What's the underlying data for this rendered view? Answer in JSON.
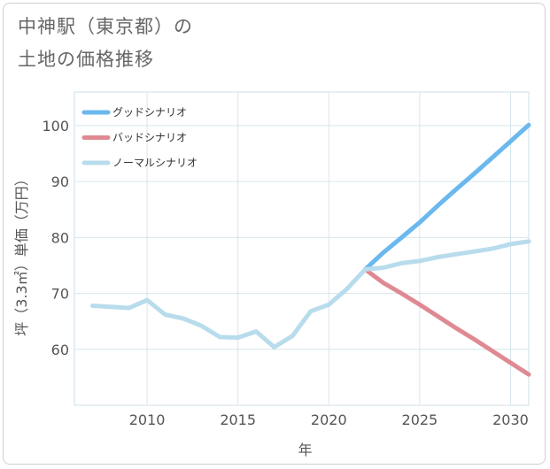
{
  "chart_data": {
    "type": "line",
    "title": [
      "中神駅（東京都）の",
      "土地の価格推移"
    ],
    "xlabel": "年",
    "ylabel": "坪（3.3㎡）単価（万円）",
    "xlim": [
      2006,
      2031
    ],
    "ylim": [
      50,
      106
    ],
    "x_ticks": [
      2010,
      2015,
      2020,
      2025,
      2030
    ],
    "y_ticks": [
      60,
      70,
      80,
      90,
      100
    ],
    "grid": true,
    "legend_position": "top-left",
    "series": [
      {
        "name": "グッドシナリオ",
        "color": "#6bb8ee",
        "x": [
          2022,
          2023,
          2024,
          2025,
          2026,
          2027,
          2028,
          2029,
          2030,
          2031
        ],
        "y": [
          74.3,
          77.3,
          80.0,
          82.7,
          85.7,
          88.6,
          91.4,
          94.3,
          97.2,
          100.1
        ]
      },
      {
        "name": "バッドシナリオ",
        "color": "#df8a93",
        "x": [
          2022,
          2023,
          2024,
          2025,
          2026,
          2027,
          2028,
          2029,
          2030,
          2031
        ],
        "y": [
          74.3,
          71.9,
          70.0,
          68.0,
          65.9,
          63.8,
          61.8,
          59.7,
          57.6,
          55.5
        ]
      },
      {
        "name": "ノーマルシナリオ",
        "color": "#b8dcec",
        "x": [
          2007,
          2008,
          2009,
          2010,
          2011,
          2012,
          2013,
          2014,
          2015,
          2016,
          2017,
          2018,
          2019,
          2020,
          2021,
          2022,
          2023,
          2024,
          2025,
          2026,
          2027,
          2028,
          2029,
          2030,
          2031
        ],
        "y": [
          67.8,
          67.6,
          67.4,
          68.8,
          66.2,
          65.5,
          64.2,
          62.2,
          62.1,
          63.2,
          60.4,
          62.4,
          66.8,
          68.0,
          70.8,
          74.3,
          74.6,
          75.4,
          75.8,
          76.5,
          77.0,
          77.5,
          78.0,
          78.8,
          79.3
        ]
      }
    ]
  }
}
